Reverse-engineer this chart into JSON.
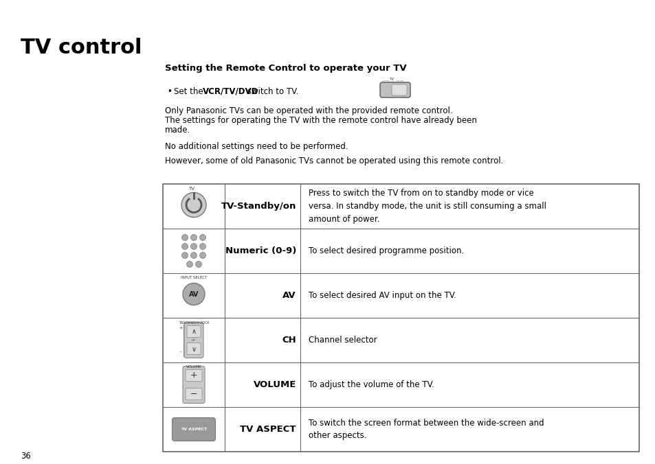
{
  "title": "TV control",
  "section_heading": "Setting the Remote Control to operate your TV",
  "paragraph1_line1": "Only Panasonic TVs can be operated with the provided remote control.",
  "paragraph1_line2": "The settings for operating the TV with the remote control have already been",
  "paragraph1_line3": "made.",
  "paragraph2": "No additional settings need to be performed.",
  "paragraph3": "However, some of old Panasonic TVs cannot be operated using this remote control.",
  "page_number": "36",
  "table_rows": [
    {
      "label": "TV-Standby/on",
      "label_bold": true,
      "description": "Press to switch the TV from on to standby mode or vice\nversa. In standby mode, the unit is still consuming a small\namount of power.",
      "icon_type": "standby"
    },
    {
      "label": "Numeric (0-9)",
      "label_bold": true,
      "description": "To select desired programme position.",
      "icon_type": "numeric"
    },
    {
      "label": "AV",
      "label_bold": true,
      "description": "To select desired AV input on the TV.",
      "icon_type": "av"
    },
    {
      "label": "CH",
      "label_bold": true,
      "description": "Channel selector",
      "icon_type": "ch"
    },
    {
      "label": "VOLUME",
      "label_bold": true,
      "description": "To adjust the volume of the TV.",
      "icon_type": "volume"
    },
    {
      "label": "TV ASPECT",
      "label_bold": true,
      "description": "To switch the screen format between the wide-screen and\nother aspects.",
      "icon_type": "tvaspect"
    }
  ],
  "background_color": "#ffffff",
  "text_color": "#000000",
  "border_color": "#666666",
  "title_fontsize": 22,
  "heading_fontsize": 9.5,
  "body_fontsize": 8.5,
  "label_fontsize": 9.5,
  "small_fontsize": 7
}
